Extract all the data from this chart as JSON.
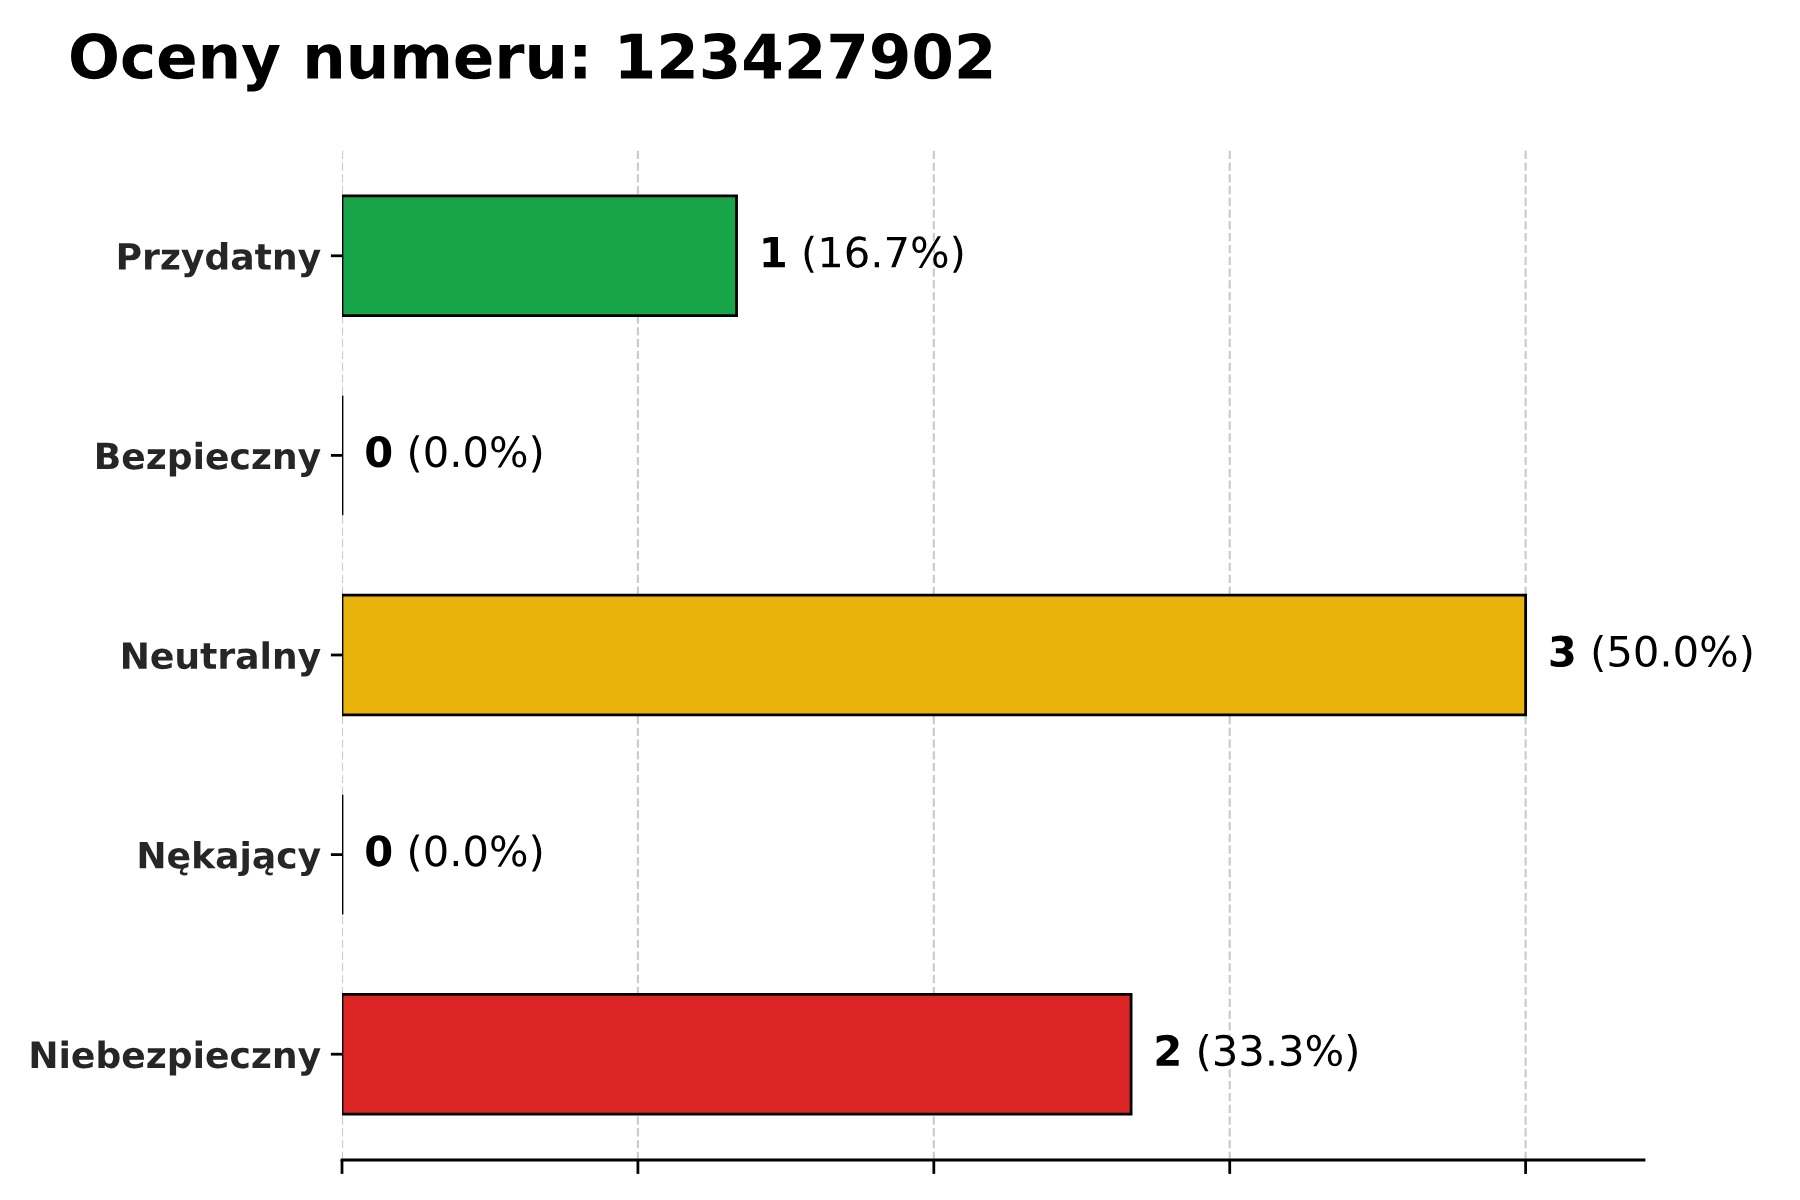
{
  "chart_data": {
    "type": "bar",
    "orientation": "horizontal",
    "title": "Oceny numeru: 123427902",
    "categories": [
      "Przydatny",
      "Bezpieczny",
      "Neutralny",
      "Nękający",
      "Niebezpieczny"
    ],
    "values": [
      1,
      0,
      3,
      0,
      2
    ],
    "colors": [
      "#18a54a",
      null,
      "#e8b40c",
      null,
      "#dc2626"
    ],
    "value_labels": [
      "1 (16.7%)",
      "0 (0.0%)",
      "3 (50.0%)",
      "0 (0.0%)",
      "2 (33.3%)"
    ],
    "xlim": [
      0,
      3.3
    ],
    "xticks": [
      {
        "value": 0,
        "label": null
      },
      {
        "value": 0.75,
        "label": null
      },
      {
        "value": 1.5,
        "label": null
      },
      {
        "value": 2.25,
        "label": null
      },
      {
        "value": 3,
        "label": null
      }
    ],
    "tick_labels": "y",
    "grid": "x",
    "legend": false
  }
}
